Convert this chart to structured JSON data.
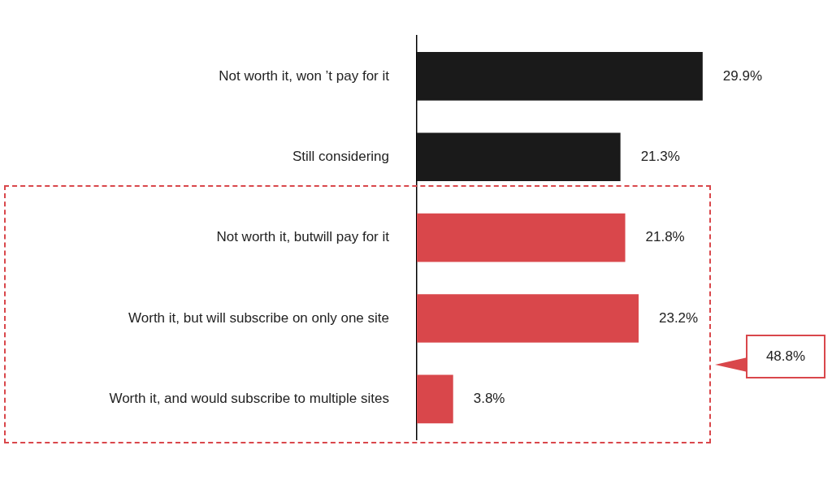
{
  "chart_data": {
    "type": "bar",
    "orientation": "horizontal",
    "categories": [
      "Not worth it, won ’t pay for it",
      "Still considering",
      "Not worth it, butwill pay for it",
      "Worth it, but will subscribe on only one site",
      "Worth it, and would subscribe to multiple sites"
    ],
    "values": [
      29.9,
      21.3,
      21.8,
      23.2,
      3.8
    ],
    "value_labels": [
      "29.9%",
      "21.3%",
      "21.8%",
      "23.2%",
      "3.8%"
    ],
    "colors": [
      "#1a1a1a",
      "#1a1a1a",
      "#d9474b",
      "#d9474b",
      "#d9474b"
    ],
    "tick_labels": "y",
    "annotations": [
      "48.8%"
    ]
  }
}
